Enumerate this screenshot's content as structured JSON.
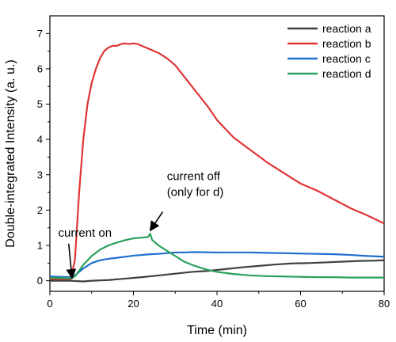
{
  "chart_data": {
    "type": "line",
    "title": "",
    "xlabel": "Time (min)",
    "ylabel": "Double-integrated Intensity (a. u.)",
    "xlim": [
      0,
      80
    ],
    "ylim": [
      -0.3,
      7.5
    ],
    "xticks": [
      0,
      20,
      40,
      60,
      80
    ],
    "yticks": [
      0,
      1,
      2,
      3,
      4,
      5,
      6,
      7
    ],
    "grid": false,
    "legend_position": "top-right",
    "series": [
      {
        "name": "reaction a",
        "color": "#404040",
        "x": [
          0,
          5,
          8,
          10,
          14,
          18,
          22,
          26,
          30,
          34,
          38,
          42,
          46,
          50,
          54,
          58,
          62,
          66,
          70,
          74,
          78,
          80
        ],
        "y": [
          0.0,
          0.0,
          -0.02,
          0.0,
          0.02,
          0.06,
          0.1,
          0.15,
          0.2,
          0.25,
          0.28,
          0.33,
          0.38,
          0.42,
          0.46,
          0.49,
          0.5,
          0.52,
          0.54,
          0.56,
          0.57,
          0.58
        ]
      },
      {
        "name": "reaction b",
        "color": "#e03535",
        "x": [
          0,
          5,
          6,
          7,
          8,
          9,
          10,
          11,
          12,
          13,
          14,
          15,
          16,
          17,
          18,
          19,
          20,
          21,
          22,
          23,
          24,
          26,
          28,
          30,
          32,
          34,
          36,
          38,
          40,
          44,
          48,
          52,
          56,
          60,
          64,
          68,
          72,
          76,
          80
        ],
        "y": [
          0.05,
          0.05,
          0.6,
          2.5,
          4.0,
          5.0,
          5.6,
          6.0,
          6.3,
          6.5,
          6.6,
          6.65,
          6.65,
          6.7,
          6.72,
          6.7,
          6.72,
          6.7,
          6.65,
          6.6,
          6.55,
          6.45,
          6.3,
          6.1,
          5.8,
          5.5,
          5.2,
          4.9,
          4.55,
          4.05,
          3.7,
          3.35,
          3.05,
          2.75,
          2.55,
          2.3,
          2.05,
          1.85,
          1.62
        ]
      },
      {
        "name": "reaction c",
        "color": "#1f6fcf",
        "x": [
          0,
          5,
          6,
          8,
          10,
          12,
          14,
          16,
          18,
          20,
          22,
          24,
          26,
          28,
          30,
          32,
          34,
          36,
          40,
          44,
          48,
          52,
          56,
          60,
          64,
          68,
          72,
          76,
          80
        ],
        "y": [
          0.12,
          0.1,
          0.15,
          0.35,
          0.5,
          0.58,
          0.62,
          0.65,
          0.68,
          0.71,
          0.73,
          0.75,
          0.76,
          0.78,
          0.8,
          0.8,
          0.81,
          0.81,
          0.8,
          0.8,
          0.8,
          0.79,
          0.78,
          0.77,
          0.76,
          0.75,
          0.73,
          0.7,
          0.68
        ]
      },
      {
        "name": "reaction d",
        "color": "#2aa05a",
        "x": [
          0,
          5,
          6,
          8,
          10,
          12,
          14,
          16,
          18,
          20,
          22,
          23,
          23.5,
          24,
          24.5,
          26,
          28,
          30,
          32,
          34,
          36,
          38,
          40,
          44,
          48,
          52,
          56,
          60,
          64,
          68,
          72,
          76,
          80
        ],
        "y": [
          0.08,
          0.07,
          0.12,
          0.45,
          0.7,
          0.88,
          1.0,
          1.08,
          1.15,
          1.2,
          1.22,
          1.23,
          1.24,
          1.33,
          1.15,
          1.0,
          0.85,
          0.7,
          0.55,
          0.45,
          0.37,
          0.3,
          0.25,
          0.19,
          0.15,
          0.13,
          0.12,
          0.11,
          0.1,
          0.1,
          0.09,
          0.09,
          0.09
        ]
      }
    ],
    "annotations": [
      {
        "id": "on",
        "lines": [
          "current on"
        ],
        "arrow_tip": [
          5.3,
          0.07
        ],
        "arrow_tail": [
          4.5,
          1.05
        ],
        "text_anchor": [
          2.0,
          1.25
        ]
      },
      {
        "id": "off",
        "lines": [
          "current off",
          "(only for d)"
        ],
        "arrow_tip": [
          24.0,
          1.42
        ],
        "arrow_tail": [
          27.0,
          1.95
        ],
        "text_anchor": [
          28.0,
          2.85
        ]
      }
    ]
  }
}
